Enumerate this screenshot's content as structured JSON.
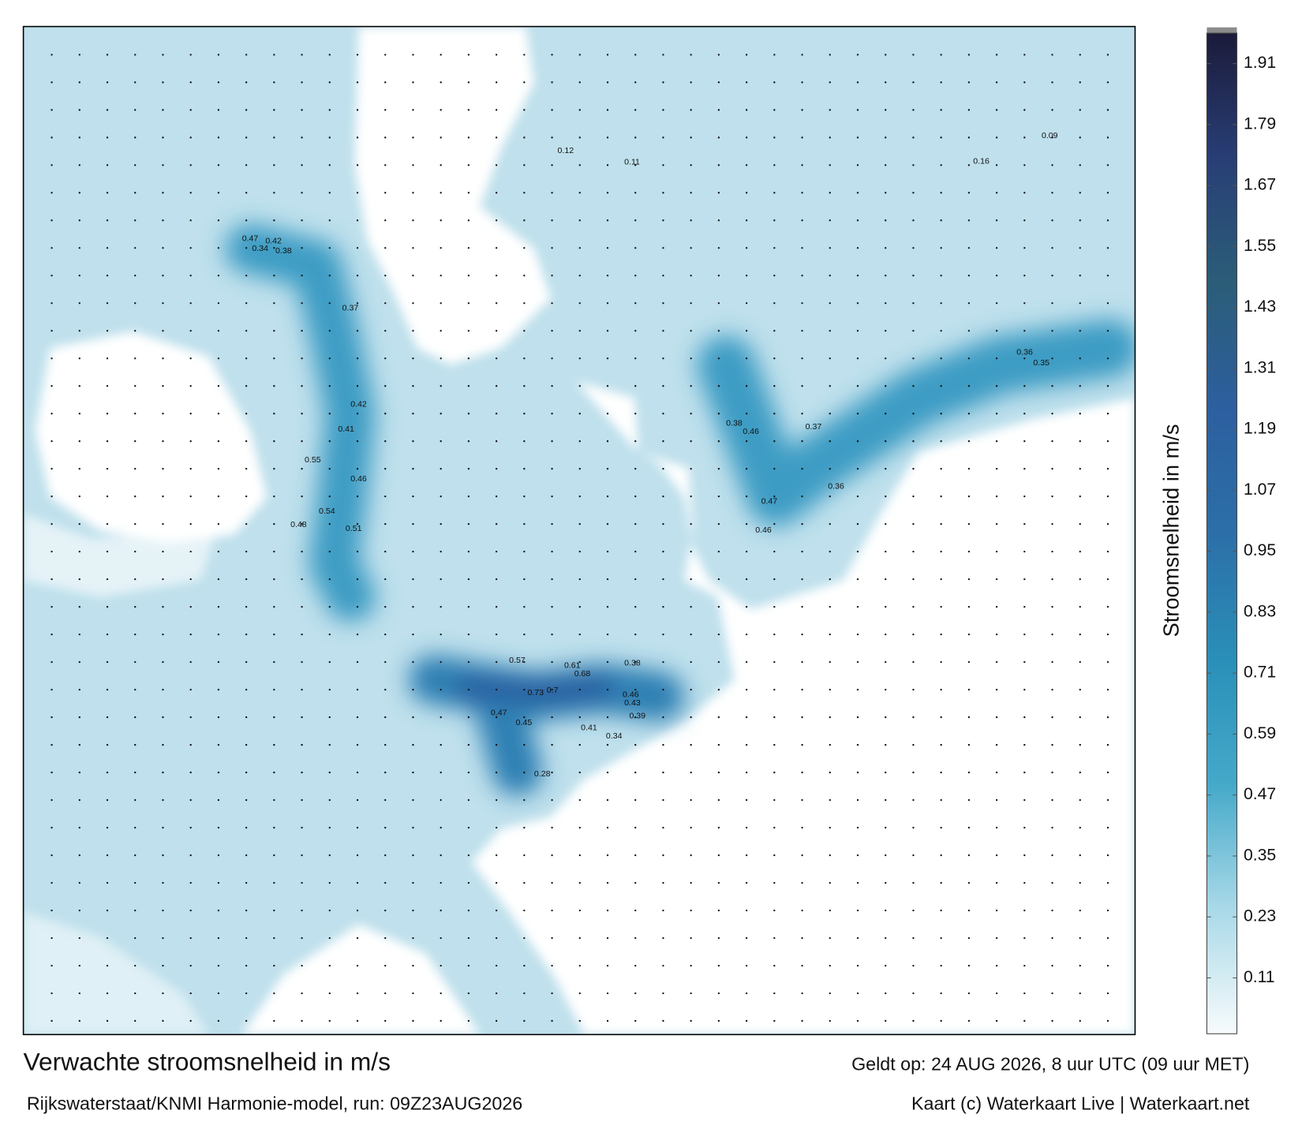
{
  "footer": {
    "title": "Verwachte stroomsnelheid in m/s",
    "valid_time": "Geldt op: 24 AUG 2026, 8 uur UTC (09 uur MET)",
    "source": "Rijkswaterstaat/KNMI Harmonie-model, run: 09Z23AUG2026",
    "credit": "Kaart (c) Waterkaart Live | Waterkaart.net"
  },
  "colorbar": {
    "label": "Stroomsnelheid in m/s",
    "lim": [
      0,
      1.97
    ],
    "ticks": [
      0.11,
      0.23,
      0.35,
      0.47,
      0.59,
      0.71,
      0.83,
      0.95,
      1.07,
      1.19,
      1.31,
      1.43,
      1.55,
      1.67,
      1.79,
      1.91
    ],
    "colors": [
      "#f7fbfc",
      "#a9d9e8",
      "#44a9c9",
      "#2a8fb8",
      "#2c6fa8",
      "#2c5f9f",
      "#2b5d78",
      "#283e76",
      "#1b1b3a"
    ]
  },
  "map": {
    "labels": [
      0.47,
      0.34,
      0.42,
      0.38,
      0.37,
      0.42,
      0.41,
      0.55,
      0.46,
      0.54,
      0.48,
      0.51,
      0.38,
      0.46,
      0.37,
      0.36,
      0.47,
      0.46,
      0.36,
      0.35,
      0.57,
      0.61,
      0.68,
      0.73,
      0.7,
      0.46,
      0.43,
      0.38,
      0.39,
      0.47,
      0.45,
      0.41,
      0.34,
      0.28,
      0.12,
      0.11,
      0.16,
      0.09
    ]
  }
}
